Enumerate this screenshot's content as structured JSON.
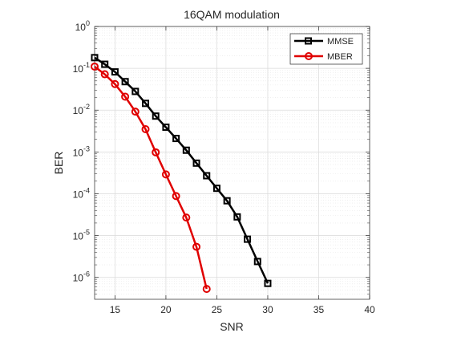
{
  "chart_data": {
    "type": "line",
    "title": "16QAM modulation",
    "xlabel": "SNR",
    "ylabel": "BER",
    "xlim": [
      13,
      40
    ],
    "ylim": [
      3e-07,
      1
    ],
    "yscale": "log",
    "grid": true,
    "minor_grid": true,
    "legend_position": "top-right",
    "x_ticks": [
      15,
      20,
      25,
      30,
      35,
      40
    ],
    "y_ticks": [
      {
        "value": 1,
        "base": "10",
        "exp": "0"
      },
      {
        "value": 0.1,
        "base": "10",
        "exp": "-1"
      },
      {
        "value": 0.01,
        "base": "10",
        "exp": "-2"
      },
      {
        "value": 0.001,
        "base": "10",
        "exp": "-3"
      },
      {
        "value": 0.0001,
        "base": "10",
        "exp": "-4"
      },
      {
        "value": 1e-05,
        "base": "10",
        "exp": "-5"
      },
      {
        "value": 1e-06,
        "base": "10",
        "exp": "-6"
      }
    ],
    "series": [
      {
        "name": "MMSE",
        "color": "#000000",
        "marker": "square",
        "x": [
          13,
          14,
          15,
          16,
          17,
          18,
          19,
          20,
          21,
          22,
          23,
          24,
          25,
          26,
          27,
          28,
          29,
          30
        ],
        "y": [
          0.18,
          0.125,
          0.082,
          0.048,
          0.028,
          0.0145,
          0.0072,
          0.0039,
          0.0021,
          0.0011,
          0.00054,
          0.00027,
          0.000135,
          6.8e-05,
          2.8e-05,
          8.2e-06,
          2.4e-06,
          7.2e-07
        ]
      },
      {
        "name": "MBER",
        "color": "#e00000",
        "marker": "circle",
        "x": [
          13,
          14,
          15,
          16,
          17,
          18,
          19,
          20,
          21,
          22,
          23,
          24
        ],
        "y": [
          0.11,
          0.072,
          0.042,
          0.021,
          0.0092,
          0.0035,
          0.00098,
          0.00029,
          8.8e-05,
          2.7e-05,
          5.4e-06,
          5.3e-07
        ]
      }
    ]
  }
}
